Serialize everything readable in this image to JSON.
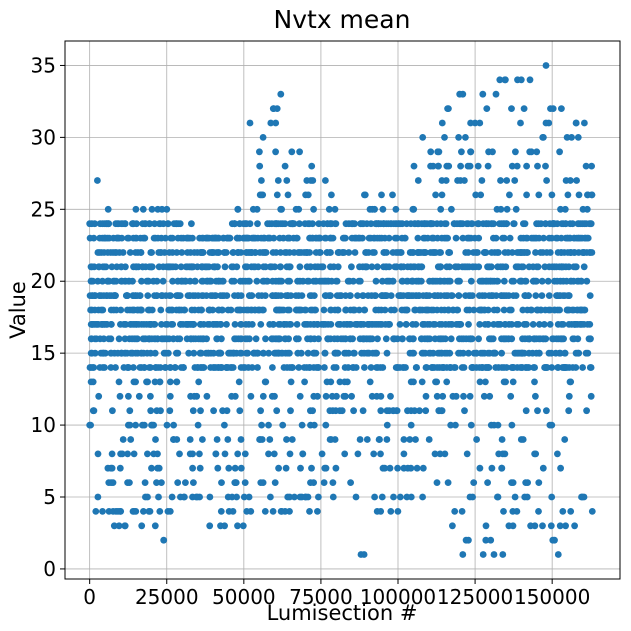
{
  "chart_data": {
    "type": "scatter",
    "title": "Nvtx mean",
    "xlabel": "Lumisection #",
    "ylabel": "Value",
    "xlim": [
      -8000,
      172000
    ],
    "ylim": [
      -0.7,
      36.7
    ],
    "x_ticks": [
      0,
      25000,
      50000,
      75000,
      100000,
      125000,
      150000
    ],
    "x_tick_labels": [
      "0",
      "25000",
      "50000",
      "75000",
      "100000",
      "125000",
      "150000"
    ],
    "y_ticks": [
      0,
      5,
      10,
      15,
      20,
      25,
      30,
      35
    ],
    "y_tick_labels": [
      "0",
      "5",
      "10",
      "15",
      "20",
      "25",
      "30",
      "35"
    ],
    "grid": true,
    "marker_color": "#1f77b4",
    "x_range_of_points": [
      0,
      163000
    ],
    "y_values_integer": true,
    "envelope": {
      "description_x": [
        0,
        3000,
        8000,
        15000,
        25000,
        30000,
        45000,
        50000,
        55000,
        62000,
        70000,
        85000,
        100000,
        108000,
        120000,
        132000,
        140000,
        148000,
        152000,
        163000
      ],
      "upper": [
        24,
        27,
        24,
        25,
        25,
        24,
        23,
        27,
        31,
        33,
        28,
        26,
        27,
        30,
        33,
        34,
        34,
        35,
        32,
        31
      ],
      "lower": [
        10,
        4,
        3,
        3,
        2,
        3,
        3,
        3,
        3,
        4,
        3,
        5,
        3,
        4,
        1,
        1,
        2,
        3,
        1,
        4
      ]
    },
    "dense_band": [
      14,
      24
    ],
    "sample_points": [
      [
        0,
        10
      ],
      [
        0,
        24
      ],
      [
        500,
        16
      ],
      [
        1000,
        20
      ],
      [
        2000,
        4
      ],
      [
        2500,
        27
      ],
      [
        8000,
        3
      ],
      [
        15000,
        25
      ],
      [
        24000,
        2
      ],
      [
        25000,
        25
      ],
      [
        33000,
        24
      ],
      [
        52000,
        31
      ],
      [
        62000,
        33
      ],
      [
        72000,
        28
      ],
      [
        88000,
        1
      ],
      [
        89000,
        1
      ],
      [
        108000,
        30
      ],
      [
        120000,
        33
      ],
      [
        121000,
        1
      ],
      [
        133000,
        34
      ],
      [
        134000,
        1
      ],
      [
        140000,
        34
      ],
      [
        148000,
        35
      ],
      [
        152000,
        1
      ],
      [
        153000,
        32
      ],
      [
        163000,
        4
      ]
    ]
  }
}
